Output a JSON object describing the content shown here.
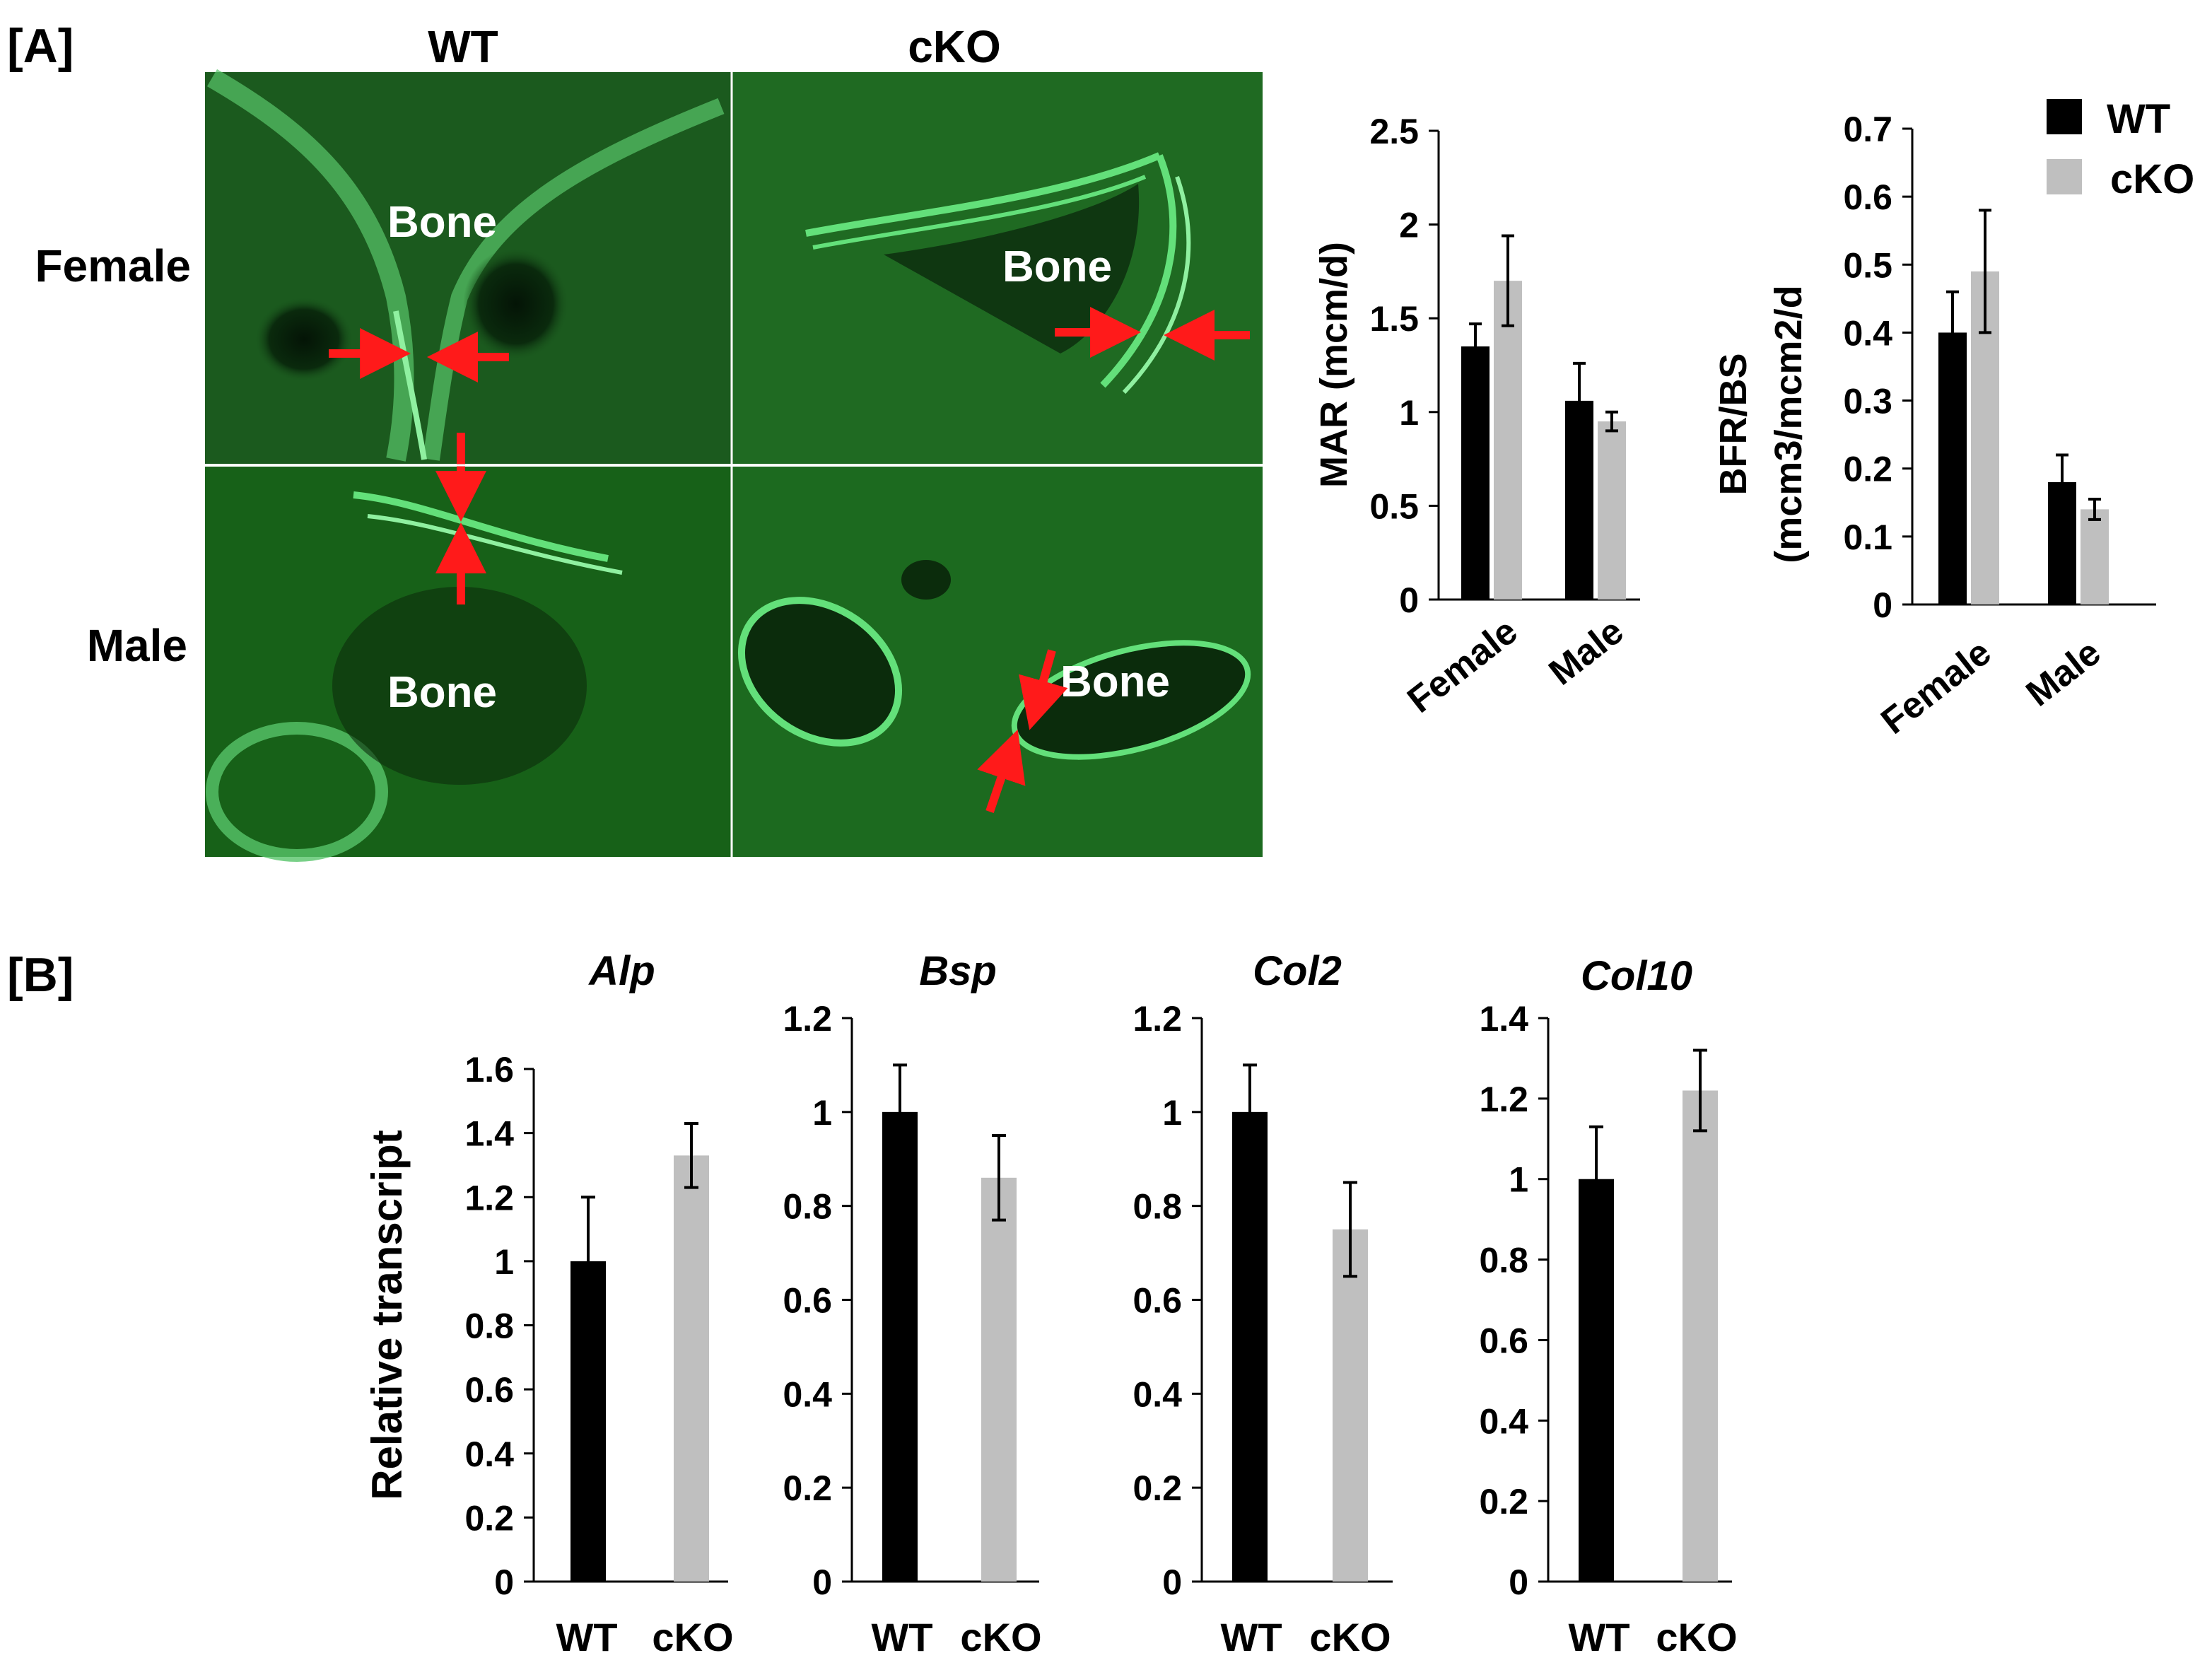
{
  "panels": {
    "a_label": "[A]",
    "b_label": "[B]"
  },
  "micrographs": {
    "col_headers": [
      "WT",
      "cKO"
    ],
    "row_headers": [
      "Female",
      "Male"
    ],
    "bone_label": "Bone",
    "colors": {
      "background": "#1b5a1e",
      "label_line": "#63e07a",
      "arrow": "#ff1a1a"
    }
  },
  "colors": {
    "wt": "#000000",
    "cko": "#bfbfbf"
  },
  "legend": {
    "entries": [
      "WT",
      "cKO"
    ],
    "placement": "top-right"
  },
  "chart_data": [
    {
      "type": "bar",
      "id": "mar",
      "title": "",
      "ylabel": "MAR (mcm/d)",
      "ylabel_lines": [
        "MAR (mcm/d)"
      ],
      "categories": [
        "Female",
        "Male"
      ],
      "ylim": [
        0,
        2.5
      ],
      "yticks": [
        "0",
        "0.5",
        "1",
        "1.5",
        "2",
        "2.5"
      ],
      "series": [
        {
          "name": "WT",
          "values": [
            1.35,
            1.06
          ],
          "errors": [
            0.12,
            0.2
          ]
        },
        {
          "name": "cKO",
          "values": [
            1.7,
            0.95
          ],
          "errors": [
            0.24,
            0.05
          ]
        }
      ]
    },
    {
      "type": "bar",
      "id": "bfr",
      "title": "",
      "ylabel": "BFR/BS (mcm3/mcm2/d",
      "ylabel_lines": [
        "BFR/BS",
        "(mcm3/mcm2/d"
      ],
      "categories": [
        "Female",
        "Male"
      ],
      "ylim": [
        0,
        0.7
      ],
      "yticks": [
        "0",
        "0.1",
        "0.2",
        "0.3",
        "0.4",
        "0.5",
        "0.6",
        "0.7"
      ],
      "series": [
        {
          "name": "WT",
          "values": [
            0.4,
            0.18
          ],
          "errors": [
            0.06,
            0.04
          ]
        },
        {
          "name": "cKO",
          "values": [
            0.49,
            0.14
          ],
          "errors": [
            0.09,
            0.015
          ]
        }
      ]
    },
    {
      "type": "bar",
      "id": "alp",
      "title": "Alp",
      "ylabel": "Relative transcript",
      "categories": [
        "WT",
        "cKO"
      ],
      "ylim": [
        0,
        1.6
      ],
      "yticks": [
        "0",
        "0.2",
        "0.4",
        "0.6",
        "0.8",
        "1",
        "1.2",
        "1.4",
        "1.6"
      ],
      "values": [
        1.0,
        1.33
      ],
      "errors": [
        0.2,
        0.1
      ]
    },
    {
      "type": "bar",
      "id": "bsp",
      "title": "Bsp",
      "ylabel": "",
      "categories": [
        "WT",
        "cKO"
      ],
      "ylim": [
        0,
        1.2
      ],
      "yticks": [
        "0",
        "0.2",
        "0.4",
        "0.6",
        "0.8",
        "1",
        "1.2"
      ],
      "values": [
        1.0,
        0.86
      ],
      "errors": [
        0.1,
        0.09
      ]
    },
    {
      "type": "bar",
      "id": "col2",
      "title": "Col2",
      "ylabel": "",
      "categories": [
        "WT",
        "cKO"
      ],
      "ylim": [
        0,
        1.2
      ],
      "yticks": [
        "0",
        "0.2",
        "0.4",
        "0.6",
        "0.8",
        "1",
        "1.2"
      ],
      "values": [
        1.0,
        0.75
      ],
      "errors": [
        0.1,
        0.1
      ]
    },
    {
      "type": "bar",
      "id": "col10",
      "title": "Col10",
      "ylabel": "",
      "categories": [
        "WT",
        "cKO"
      ],
      "ylim": [
        0,
        1.4
      ],
      "yticks": [
        "0",
        "0.2",
        "0.4",
        "0.6",
        "0.8",
        "1",
        "1.2",
        "1.4"
      ],
      "values": [
        1.0,
        1.22
      ],
      "errors": [
        0.13,
        0.1
      ]
    }
  ]
}
